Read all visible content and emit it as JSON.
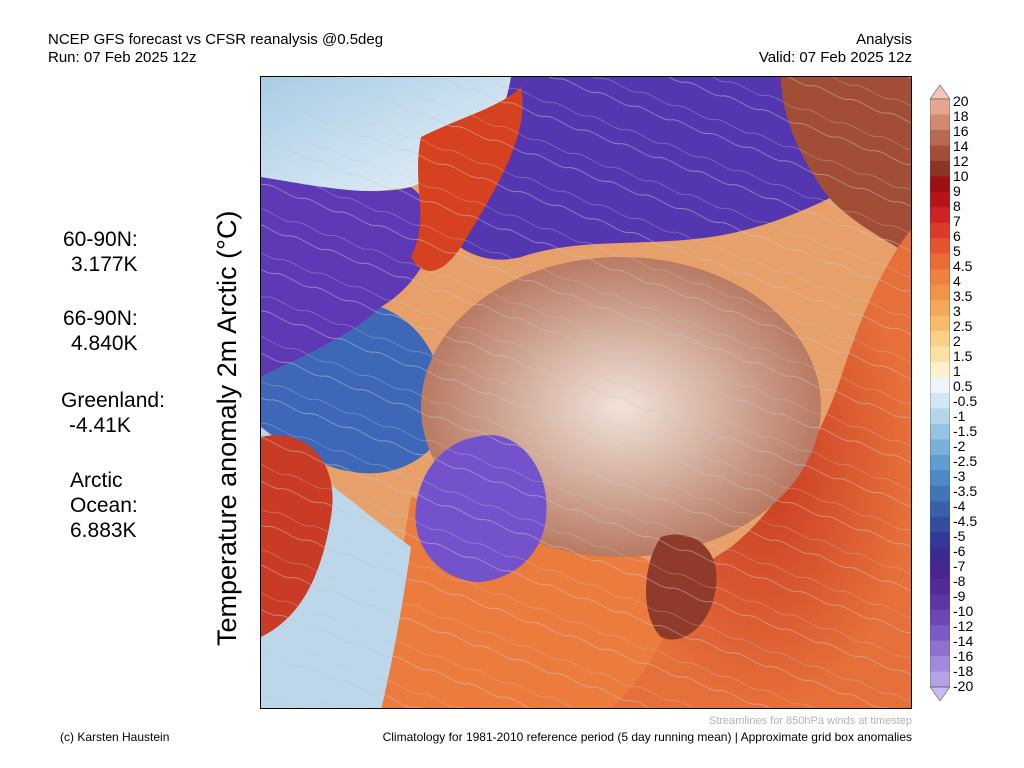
{
  "header": {
    "title_line1": "NCEP GFS forecast vs CFSR reanalysis @0.5deg",
    "title_line2": "Run: 07 Feb 2025 12z",
    "right_line1": "Analysis",
    "right_line2": "Valid: 07 Feb 2025 12z"
  },
  "vertical_title": "Temperature anomaly 2m Arctic (°C)",
  "stats": [
    {
      "label": "60-90N:",
      "value": "3.177K"
    },
    {
      "label": "66-90N:",
      "value": "4.840K"
    },
    {
      "label": "Greenland:",
      "value": "-4.41K"
    },
    {
      "label": "Arctic Ocean:",
      "value": "6.883K",
      "label_lines": [
        "Arctic",
        "Ocean:"
      ]
    }
  ],
  "colorbar": {
    "labels": [
      "20",
      "18",
      "16",
      "14",
      "12",
      "10",
      "9",
      "8",
      "7",
      "6",
      "5",
      "4.5",
      "4",
      "3.5",
      "3",
      "2.5",
      "2",
      "1.5",
      "1",
      "0.5",
      "-0.5",
      "-1",
      "-1.5",
      "-2",
      "-2.5",
      "-3",
      "-3.5",
      "-4",
      "-4.5",
      "-5",
      "-6",
      "-7",
      "-8",
      "-9",
      "-10",
      "-12",
      "-14",
      "-16",
      "-18",
      "-20"
    ],
    "colors": [
      "#f3c6ba",
      "#e3a78f",
      "#cf8a70",
      "#b96852",
      "#a34d3b",
      "#8b3528",
      "#9c1016",
      "#b5141b",
      "#cc2424",
      "#dc3a2a",
      "#e6532f",
      "#ec6a35",
      "#f0803d",
      "#f29448",
      "#f4a857",
      "#f6bc6c",
      "#f8d088",
      "#fae2a6",
      "#fcf1cc",
      "#eef5fa",
      "#d2e6f3",
      "#b5d5eb",
      "#96c3e3",
      "#79b0d9",
      "#5f9dd0",
      "#4d89c4",
      "#4175b8",
      "#3961ab",
      "#344d9d",
      "#34389a",
      "#3b2a90",
      "#48258f",
      "#532a96",
      "#5e36a3",
      "#6c47b3",
      "#7c5bc2",
      "#8e71cf",
      "#a189db",
      "#b4a1e6",
      "#c8bbf0"
    ]
  },
  "map": {
    "legend_regions": [
      {
        "name": "arctic-ocean-warm-anomaly",
        "color": "#c9947e"
      },
      {
        "name": "siberia-cold-anomaly",
        "color": "#6a48c8"
      },
      {
        "name": "greenland-cold-anomaly",
        "color": "#7550cc"
      }
    ]
  },
  "footer": {
    "credit": "(c) Karsten Haustein",
    "streamlines_note": "Streamlines for 850hPa winds at timestep",
    "climatology_note": "Climatology for 1981-2010 reference period (5 day running mean) | Approximate grid box anomalies"
  }
}
